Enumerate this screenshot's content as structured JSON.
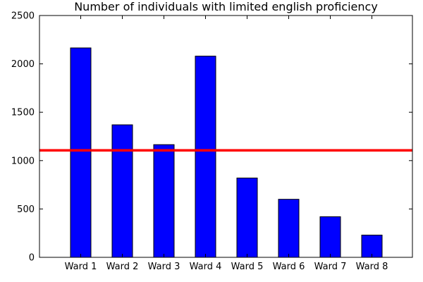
{
  "chart_data": {
    "type": "bar",
    "title": "Number of individuals with limited english proficiency",
    "xlabel": "",
    "ylabel": "",
    "categories": [
      "Ward 1",
      "Ward 2",
      "Ward 3",
      "Ward 4",
      "Ward 5",
      "Ward 6",
      "Ward 7",
      "Ward 8"
    ],
    "values": [
      2165,
      1370,
      1165,
      2080,
      820,
      600,
      420,
      230
    ],
    "ylim": [
      0,
      2500
    ],
    "yticks": [
      0,
      500,
      1000,
      1500,
      2000,
      2500
    ],
    "grid": false,
    "reference_line": {
      "value": 1106
    },
    "colors": {
      "bar": "#0000ff",
      "bar_edge": "#000000",
      "reference_line": "#ff0000",
      "axes": "#000000"
    }
  }
}
